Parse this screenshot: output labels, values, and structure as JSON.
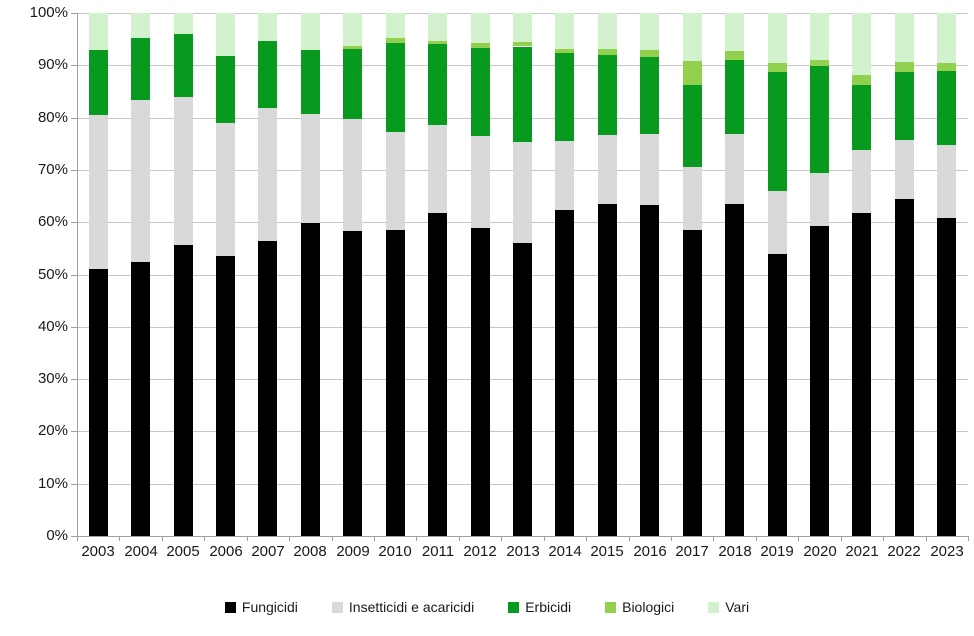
{
  "chart_data": {
    "type": "bar",
    "stacked": true,
    "percent_stacked": true,
    "title": "",
    "xlabel": "",
    "ylabel": "",
    "ylim": [
      0,
      100
    ],
    "grid": true,
    "legend_position": "bottom",
    "y_ticks": [
      "0%",
      "10%",
      "20%",
      "30%",
      "40%",
      "50%",
      "60%",
      "70%",
      "80%",
      "90%",
      "100%"
    ],
    "categories": [
      "2003",
      "2004",
      "2005",
      "2006",
      "2007",
      "2008",
      "2009",
      "2010",
      "2011",
      "2012",
      "2013",
      "2014",
      "2015",
      "2016",
      "2017",
      "2018",
      "2019",
      "2020",
      "2021",
      "2022",
      "2023"
    ],
    "series": [
      {
        "name": "Fungicidi",
        "color": "#000000",
        "values": [
          51.0,
          52.4,
          55.7,
          53.6,
          56.4,
          59.8,
          58.3,
          58.6,
          61.8,
          58.9,
          56.1,
          62.4,
          63.4,
          63.3,
          58.5,
          63.5,
          53.9,
          59.3,
          61.8,
          64.5,
          60.9
        ]
      },
      {
        "name": "Insetticidi e acaricidi",
        "color": "#d9d9d9",
        "values": [
          29.5,
          31.0,
          28.3,
          25.4,
          25.5,
          20.8,
          21.5,
          18.6,
          16.8,
          17.6,
          19.3,
          13.1,
          13.3,
          13.5,
          12.0,
          13.4,
          12.1,
          10.2,
          12.0,
          11.2,
          13.9
        ]
      },
      {
        "name": "Erbicidi",
        "color": "#079a1e",
        "values": [
          12.5,
          11.8,
          12.0,
          12.8,
          12.8,
          12.4,
          13.3,
          17.0,
          15.4,
          16.8,
          18.2,
          16.9,
          15.3,
          14.7,
          15.7,
          14.2,
          22.7,
          20.3,
          12.4,
          13.1,
          14.2
        ]
      },
      {
        "name": "Biologici",
        "color": "#92d050",
        "values": [
          0.0,
          0.0,
          0.0,
          0.0,
          0.0,
          0.0,
          0.6,
          1.1,
          0.7,
          1.0,
          0.8,
          0.8,
          1.2,
          1.4,
          4.7,
          1.7,
          1.7,
          1.3,
          1.9,
          1.8,
          1.5
        ]
      },
      {
        "name": "Vari",
        "color": "#d2f2cd",
        "values": [
          7.0,
          4.8,
          4.0,
          8.2,
          5.3,
          7.0,
          6.3,
          4.7,
          5.3,
          5.7,
          5.6,
          6.8,
          6.8,
          7.1,
          9.1,
          7.2,
          9.6,
          8.9,
          11.9,
          9.4,
          9.5
        ]
      }
    ]
  }
}
